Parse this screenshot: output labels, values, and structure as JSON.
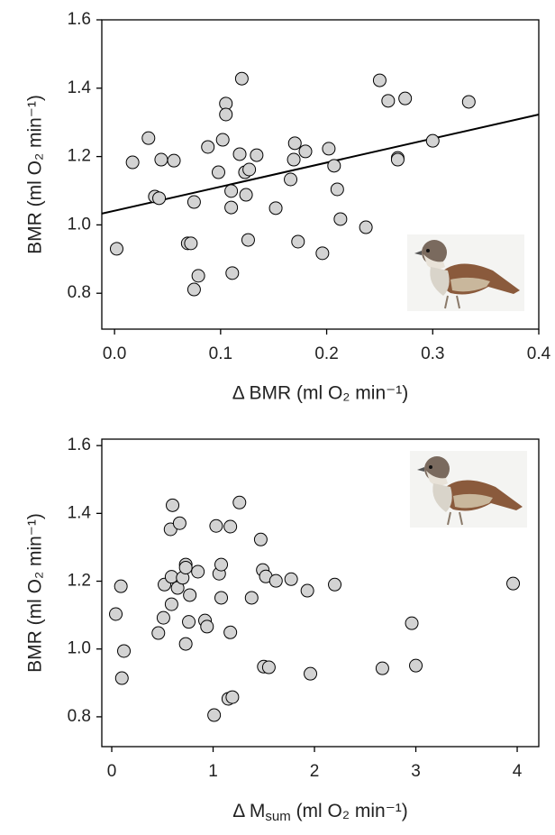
{
  "chart_data": [
    {
      "type": "scatter",
      "x_label": "Δ BMR (ml O₂ min⁻¹)",
      "y_label": "BMR (ml O₂ min⁻¹)",
      "color": "#d3d3d3",
      "x": [
        0.002,
        0.017,
        0.032,
        0.044,
        0.056,
        0.038,
        0.042,
        0.069,
        0.072,
        0.075,
        0.075,
        0.079,
        0.088,
        0.098,
        0.102,
        0.105,
        0.105,
        0.11,
        0.11,
        0.111,
        0.118,
        0.12,
        0.123,
        0.124,
        0.127,
        0.126,
        0.134,
        0.152,
        0.166,
        0.17,
        0.169,
        0.173,
        0.18,
        0.196,
        0.202,
        0.207,
        0.21,
        0.213,
        0.237,
        0.25,
        0.258,
        0.267,
        0.267,
        0.274,
        0.3,
        0.334
      ],
      "values": [
        0.93,
        1.183,
        1.254,
        1.191,
        1.188,
        1.083,
        1.078,
        0.946,
        0.946,
        1.067,
        0.811,
        0.851,
        1.228,
        1.154,
        1.249,
        1.355,
        1.323,
        1.099,
        1.051,
        0.859,
        1.207,
        1.428,
        1.154,
        1.088,
        1.162,
        0.956,
        1.204,
        1.049,
        1.133,
        1.239,
        1.191,
        0.951,
        1.215,
        0.917,
        1.223,
        1.173,
        1.104,
        1.017,
        0.993,
        1.423,
        1.363,
        1.196,
        1.191,
        1.37,
        1.246,
        1.36
      ],
      "fit": {
        "x": [
          -0.012,
          0.4
        ],
        "values": [
          1.033,
          1.323
        ]
      },
      "xlim": [
        -0.012,
        0.4
      ],
      "ylim": [
        0.695,
        1.6
      ],
      "xticks": [
        {
          "value": 0,
          "label": "0.0"
        },
        0.1,
        0.2,
        0.3,
        0.4
      ],
      "yticks": [
        0.8,
        {
          "value": 1,
          "label": "1.0"
        },
        1.2,
        1.4,
        1.6
      ]
    },
    {
      "type": "scatter",
      "x_label": [
        "Δ M",
        "sum",
        " (ml O₂ min⁻¹)"
      ],
      "y_label": "BMR (ml O₂ min⁻¹)",
      "color": "#d3d3d3",
      "x": [
        0.04,
        0.09,
        0.12,
        0.1,
        0.52,
        0.6,
        0.58,
        0.59,
        0.46,
        0.51,
        0.59,
        0.67,
        0.65,
        0.7,
        0.73,
        0.73,
        0.73,
        0.76,
        0.77,
        0.85,
        0.92,
        0.94,
        1.01,
        1.03,
        1.06,
        1.08,
        1.08,
        1.15,
        1.19,
        1.17,
        1.17,
        1.26,
        1.38,
        1.47,
        1.49,
        1.52,
        1.5,
        1.55,
        1.62,
        1.77,
        1.93,
        1.96,
        2.2,
        2.67,
        2.96,
        3.0,
        3.96
      ],
      "values": [
        1.103,
        1.185,
        0.994,
        0.914,
        1.19,
        1.424,
        1.353,
        1.213,
        1.047,
        1.092,
        1.132,
        1.371,
        1.18,
        1.21,
        1.249,
        1.24,
        1.015,
        1.08,
        1.159,
        1.228,
        1.084,
        1.066,
        0.805,
        1.363,
        1.222,
        1.249,
        1.151,
        0.853,
        0.858,
        1.361,
        1.049,
        1.432,
        1.151,
        1.323,
        1.233,
        1.214,
        0.948,
        0.946,
        1.201,
        1.206,
        1.172,
        0.927,
        1.19,
        0.943,
        1.076,
        0.951,
        1.193
      ],
      "xlim": [
        -0.098,
        4.213
      ],
      "ylim": [
        0.712,
        1.619
      ],
      "xticks": [
        0,
        1,
        2,
        3,
        4
      ],
      "yticks": [
        0.8,
        {
          "value": 1,
          "label": "1.0"
        },
        1.2,
        1.4,
        1.6
      ]
    }
  ]
}
